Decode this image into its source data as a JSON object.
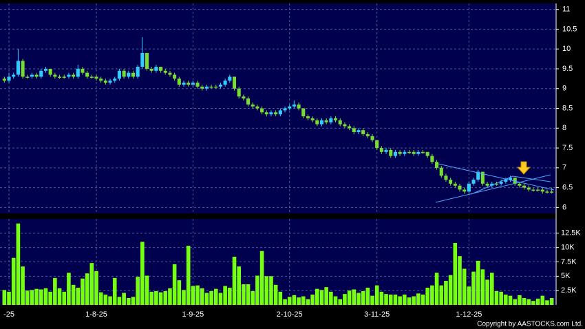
{
  "chart_data": {
    "type": "candlestick",
    "up_color": "#33ccff",
    "down_color": "#77dd33",
    "volume_color": "#77ff11",
    "grid": true,
    "copyright": "Copyright by AASTOCKS.com Ltd.",
    "categories": [
      null,
      "-25",
      null,
      null,
      null,
      null,
      null,
      null,
      null,
      null,
      null,
      null,
      null,
      null,
      null,
      null,
      null,
      null,
      null,
      null,
      "1-8-25",
      null,
      null,
      null,
      null,
      null,
      null,
      null,
      null,
      null,
      null,
      null,
      null,
      null,
      null,
      null,
      null,
      null,
      null,
      null,
      null,
      "1-9-25",
      null,
      null,
      null,
      null,
      null,
      null,
      null,
      null,
      null,
      null,
      null,
      null,
      null,
      null,
      null,
      null,
      null,
      null,
      null,
      null,
      "2-10-25",
      null,
      null,
      null,
      null,
      null,
      null,
      null,
      null,
      null,
      null,
      null,
      null,
      null,
      null,
      null,
      null,
      null,
      null,
      "3-11-25",
      null,
      null,
      null,
      null,
      null,
      null,
      null,
      null,
      null,
      null,
      null,
      null,
      null,
      null,
      null,
      null,
      null,
      null,
      null,
      "1-12-25",
      null,
      null,
      null,
      null,
      null,
      null,
      null,
      null,
      null,
      null,
      null,
      null,
      null,
      null,
      null,
      null,
      null,
      null
    ],
    "ohlc": [
      [
        9.25,
        9.3,
        9.15,
        9.2
      ],
      [
        9.2,
        9.4,
        9.15,
        9.3
      ],
      [
        9.3,
        9.4,
        9.25,
        9.35
      ],
      [
        9.35,
        10.0,
        9.3,
        9.7
      ],
      [
        9.7,
        9.75,
        9.25,
        9.3
      ],
      [
        9.3,
        9.35,
        9.25,
        9.3
      ],
      [
        9.3,
        9.4,
        9.25,
        9.35
      ],
      [
        9.35,
        9.4,
        9.25,
        9.3
      ],
      [
        9.3,
        9.5,
        9.25,
        9.45
      ],
      [
        9.45,
        9.55,
        9.4,
        9.5
      ],
      [
        9.5,
        9.5,
        9.3,
        9.35
      ],
      [
        9.35,
        9.4,
        9.25,
        9.3
      ],
      [
        9.3,
        9.35,
        9.25,
        9.3
      ],
      [
        9.3,
        9.35,
        9.25,
        9.3
      ],
      [
        9.3,
        9.4,
        9.25,
        9.35
      ],
      [
        9.35,
        9.4,
        9.25,
        9.3
      ],
      [
        9.3,
        9.6,
        9.25,
        9.5
      ],
      [
        9.5,
        9.55,
        9.35,
        9.4
      ],
      [
        9.4,
        9.45,
        9.25,
        9.3
      ],
      [
        9.3,
        9.35,
        9.25,
        9.3
      ],
      [
        9.3,
        9.35,
        9.2,
        9.25
      ],
      [
        9.25,
        9.3,
        9.15,
        9.2
      ],
      [
        9.2,
        9.25,
        9.1,
        9.15
      ],
      [
        9.15,
        9.25,
        9.1,
        9.2
      ],
      [
        9.2,
        9.3,
        9.15,
        9.25
      ],
      [
        9.25,
        9.5,
        9.2,
        9.45
      ],
      [
        9.45,
        9.5,
        9.25,
        9.3
      ],
      [
        9.3,
        9.45,
        9.25,
        9.4
      ],
      [
        9.4,
        9.45,
        9.25,
        9.3
      ],
      [
        9.3,
        9.6,
        9.25,
        9.55
      ],
      [
        9.55,
        10.3,
        9.5,
        9.9
      ],
      [
        9.9,
        9.9,
        9.45,
        9.5
      ],
      [
        9.5,
        9.55,
        9.4,
        9.45
      ],
      [
        9.45,
        9.6,
        9.4,
        9.55
      ],
      [
        9.55,
        9.55,
        9.4,
        9.45
      ],
      [
        9.45,
        9.5,
        9.35,
        9.4
      ],
      [
        9.4,
        9.45,
        9.3,
        9.35
      ],
      [
        9.35,
        9.4,
        9.2,
        9.25
      ],
      [
        9.25,
        9.3,
        9.05,
        9.1
      ],
      [
        9.1,
        9.2,
        9.05,
        9.15
      ],
      [
        9.15,
        9.2,
        9.05,
        9.1
      ],
      [
        9.1,
        9.2,
        9.05,
        9.15
      ],
      [
        9.15,
        9.2,
        9.0,
        9.05
      ],
      [
        9.05,
        9.1,
        8.95,
        9.0
      ],
      [
        9.0,
        9.1,
        8.95,
        9.05
      ],
      [
        9.05,
        9.1,
        9.0,
        9.05
      ],
      [
        9.05,
        9.1,
        9.0,
        9.05
      ],
      [
        9.05,
        9.15,
        9.0,
        9.1
      ],
      [
        9.1,
        9.25,
        9.05,
        9.2
      ],
      [
        9.2,
        9.35,
        9.15,
        9.3
      ],
      [
        9.3,
        9.3,
        8.95,
        9.0
      ],
      [
        9.0,
        9.05,
        8.75,
        8.8
      ],
      [
        8.8,
        8.85,
        8.7,
        8.75
      ],
      [
        8.75,
        8.8,
        8.55,
        8.6
      ],
      [
        8.6,
        8.65,
        8.5,
        8.55
      ],
      [
        8.55,
        8.6,
        8.45,
        8.5
      ],
      [
        8.5,
        8.55,
        8.35,
        8.4
      ],
      [
        8.4,
        8.45,
        8.3,
        8.35
      ],
      [
        8.35,
        8.45,
        8.3,
        8.4
      ],
      [
        8.4,
        8.45,
        8.3,
        8.35
      ],
      [
        8.35,
        8.5,
        8.3,
        8.45
      ],
      [
        8.45,
        8.55,
        8.4,
        8.5
      ],
      [
        8.5,
        8.6,
        8.45,
        8.55
      ],
      [
        8.55,
        8.7,
        8.5,
        8.6
      ],
      [
        8.6,
        8.65,
        8.45,
        8.5
      ],
      [
        8.5,
        8.5,
        8.25,
        8.3
      ],
      [
        8.3,
        8.35,
        8.2,
        8.25
      ],
      [
        8.25,
        8.3,
        8.15,
        8.2
      ],
      [
        8.2,
        8.25,
        8.05,
        8.1
      ],
      [
        8.1,
        8.25,
        8.05,
        8.2
      ],
      [
        8.2,
        8.25,
        8.1,
        8.15
      ],
      [
        8.15,
        8.3,
        8.1,
        8.25
      ],
      [
        8.25,
        8.3,
        8.15,
        8.2
      ],
      [
        8.2,
        8.25,
        8.05,
        8.1
      ],
      [
        8.1,
        8.15,
        8.0,
        8.05
      ],
      [
        8.05,
        8.1,
        7.95,
        8.0
      ],
      [
        8.0,
        8.05,
        7.85,
        7.9
      ],
      [
        7.9,
        8.0,
        7.85,
        7.95
      ],
      [
        7.95,
        8.0,
        7.8,
        7.85
      ],
      [
        7.85,
        7.9,
        7.75,
        7.8
      ],
      [
        7.8,
        7.85,
        7.65,
        7.7
      ],
      [
        7.7,
        7.7,
        7.45,
        7.5
      ],
      [
        7.5,
        7.55,
        7.35,
        7.4
      ],
      [
        7.4,
        7.5,
        7.35,
        7.45
      ],
      [
        7.45,
        7.5,
        7.25,
        7.3
      ],
      [
        7.3,
        7.45,
        7.25,
        7.4
      ],
      [
        7.4,
        7.45,
        7.3,
        7.35
      ],
      [
        7.35,
        7.45,
        7.3,
        7.4
      ],
      [
        7.4,
        7.45,
        7.35,
        7.4
      ],
      [
        7.4,
        7.45,
        7.3,
        7.35
      ],
      [
        7.35,
        7.45,
        7.3,
        7.4
      ],
      [
        7.4,
        7.45,
        7.35,
        7.4
      ],
      [
        7.4,
        7.4,
        7.25,
        7.3
      ],
      [
        7.3,
        7.35,
        7.1,
        7.15
      ],
      [
        7.15,
        7.2,
        6.95,
        7.0
      ],
      [
        7.0,
        7.05,
        6.75,
        6.8
      ],
      [
        6.8,
        6.85,
        6.65,
        6.7
      ],
      [
        6.7,
        6.75,
        6.55,
        6.6
      ],
      [
        6.6,
        6.65,
        6.5,
        6.55
      ],
      [
        6.55,
        6.6,
        6.4,
        6.45
      ],
      [
        6.45,
        6.5,
        6.35,
        6.4
      ],
      [
        6.4,
        6.65,
        6.35,
        6.6
      ],
      [
        6.6,
        6.75,
        6.55,
        6.7
      ],
      [
        6.7,
        6.95,
        6.65,
        6.9
      ],
      [
        6.9,
        6.9,
        6.55,
        6.6
      ],
      [
        6.6,
        6.65,
        6.5,
        6.55
      ],
      [
        6.55,
        6.65,
        6.5,
        6.6
      ],
      [
        6.6,
        6.65,
        6.55,
        6.6
      ],
      [
        6.6,
        6.7,
        6.55,
        6.65
      ],
      [
        6.65,
        6.75,
        6.6,
        6.7
      ],
      [
        6.7,
        6.8,
        6.65,
        6.75
      ],
      [
        6.75,
        6.75,
        6.55,
        6.6
      ],
      [
        6.6,
        6.65,
        6.5,
        6.55
      ],
      [
        6.55,
        6.6,
        6.45,
        6.5
      ],
      [
        6.5,
        6.55,
        6.4,
        6.45
      ],
      [
        6.45,
        6.5,
        6.4,
        6.45
      ],
      [
        6.45,
        6.5,
        6.4,
        6.45
      ],
      [
        6.45,
        6.5,
        6.35,
        6.4
      ],
      [
        6.4,
        6.45,
        6.35,
        6.4
      ],
      [
        6.4,
        6.5,
        6.35,
        6.4
      ]
    ],
    "volume": [
      2600,
      2300,
      8200,
      14200,
      6700,
      2500,
      2600,
      2800,
      2700,
      2900,
      2300,
      4700,
      2900,
      2300,
      5600,
      3500,
      3000,
      4600,
      5500,
      7300,
      5900,
      2200,
      1800,
      1500,
      4700,
      1400,
      2100,
      1200,
      1400,
      4900,
      11000,
      5100,
      2300,
      2400,
      2200,
      2400,
      2900,
      7100,
      4300,
      2600,
      10300,
      3300,
      3400,
      2900,
      2100,
      2400,
      2800,
      2100,
      3300,
      3000,
      8400,
      6700,
      3600,
      3600,
      2400,
      5100,
      9400,
      5000,
      5000,
      3500,
      2300,
      1000,
      1400,
      1700,
      1300,
      1500,
      1000,
      1800,
      2800,
      2600,
      3100,
      2300,
      1500,
      1000,
      1900,
      2500,
      2700,
      2100,
      2400,
      3000,
      1600,
      3400,
      2300,
      1900,
      1800,
      1800,
      1500,
      1800,
      1300,
      1500,
      2000,
      1800,
      3000,
      3400,
      5600,
      3400,
      4200,
      5200,
      10800,
      8500,
      6300,
      3200,
      5800,
      7700,
      6200,
      4400,
      5600,
      2400,
      2300,
      1800,
      1600,
      1000,
      1700,
      1200,
      1000,
      700,
      1100,
      1600,
      800,
      1200
    ],
    "ylim": [
      5.85,
      11.15
    ],
    "yticks": [
      6,
      6.5,
      7,
      7.5,
      8,
      8.5,
      9,
      9.5,
      10,
      10.5,
      11
    ],
    "y2lim": [
      0,
      15000
    ],
    "y2ticks": [
      {
        "value": 2500,
        "label": "2.5K"
      },
      {
        "value": 5000,
        "label": "5K"
      },
      {
        "value": 7500,
        "label": "7.5K"
      },
      {
        "value": 10000,
        "label": "10K"
      },
      {
        "value": 12500,
        "label": "12.5K"
      }
    ]
  }
}
